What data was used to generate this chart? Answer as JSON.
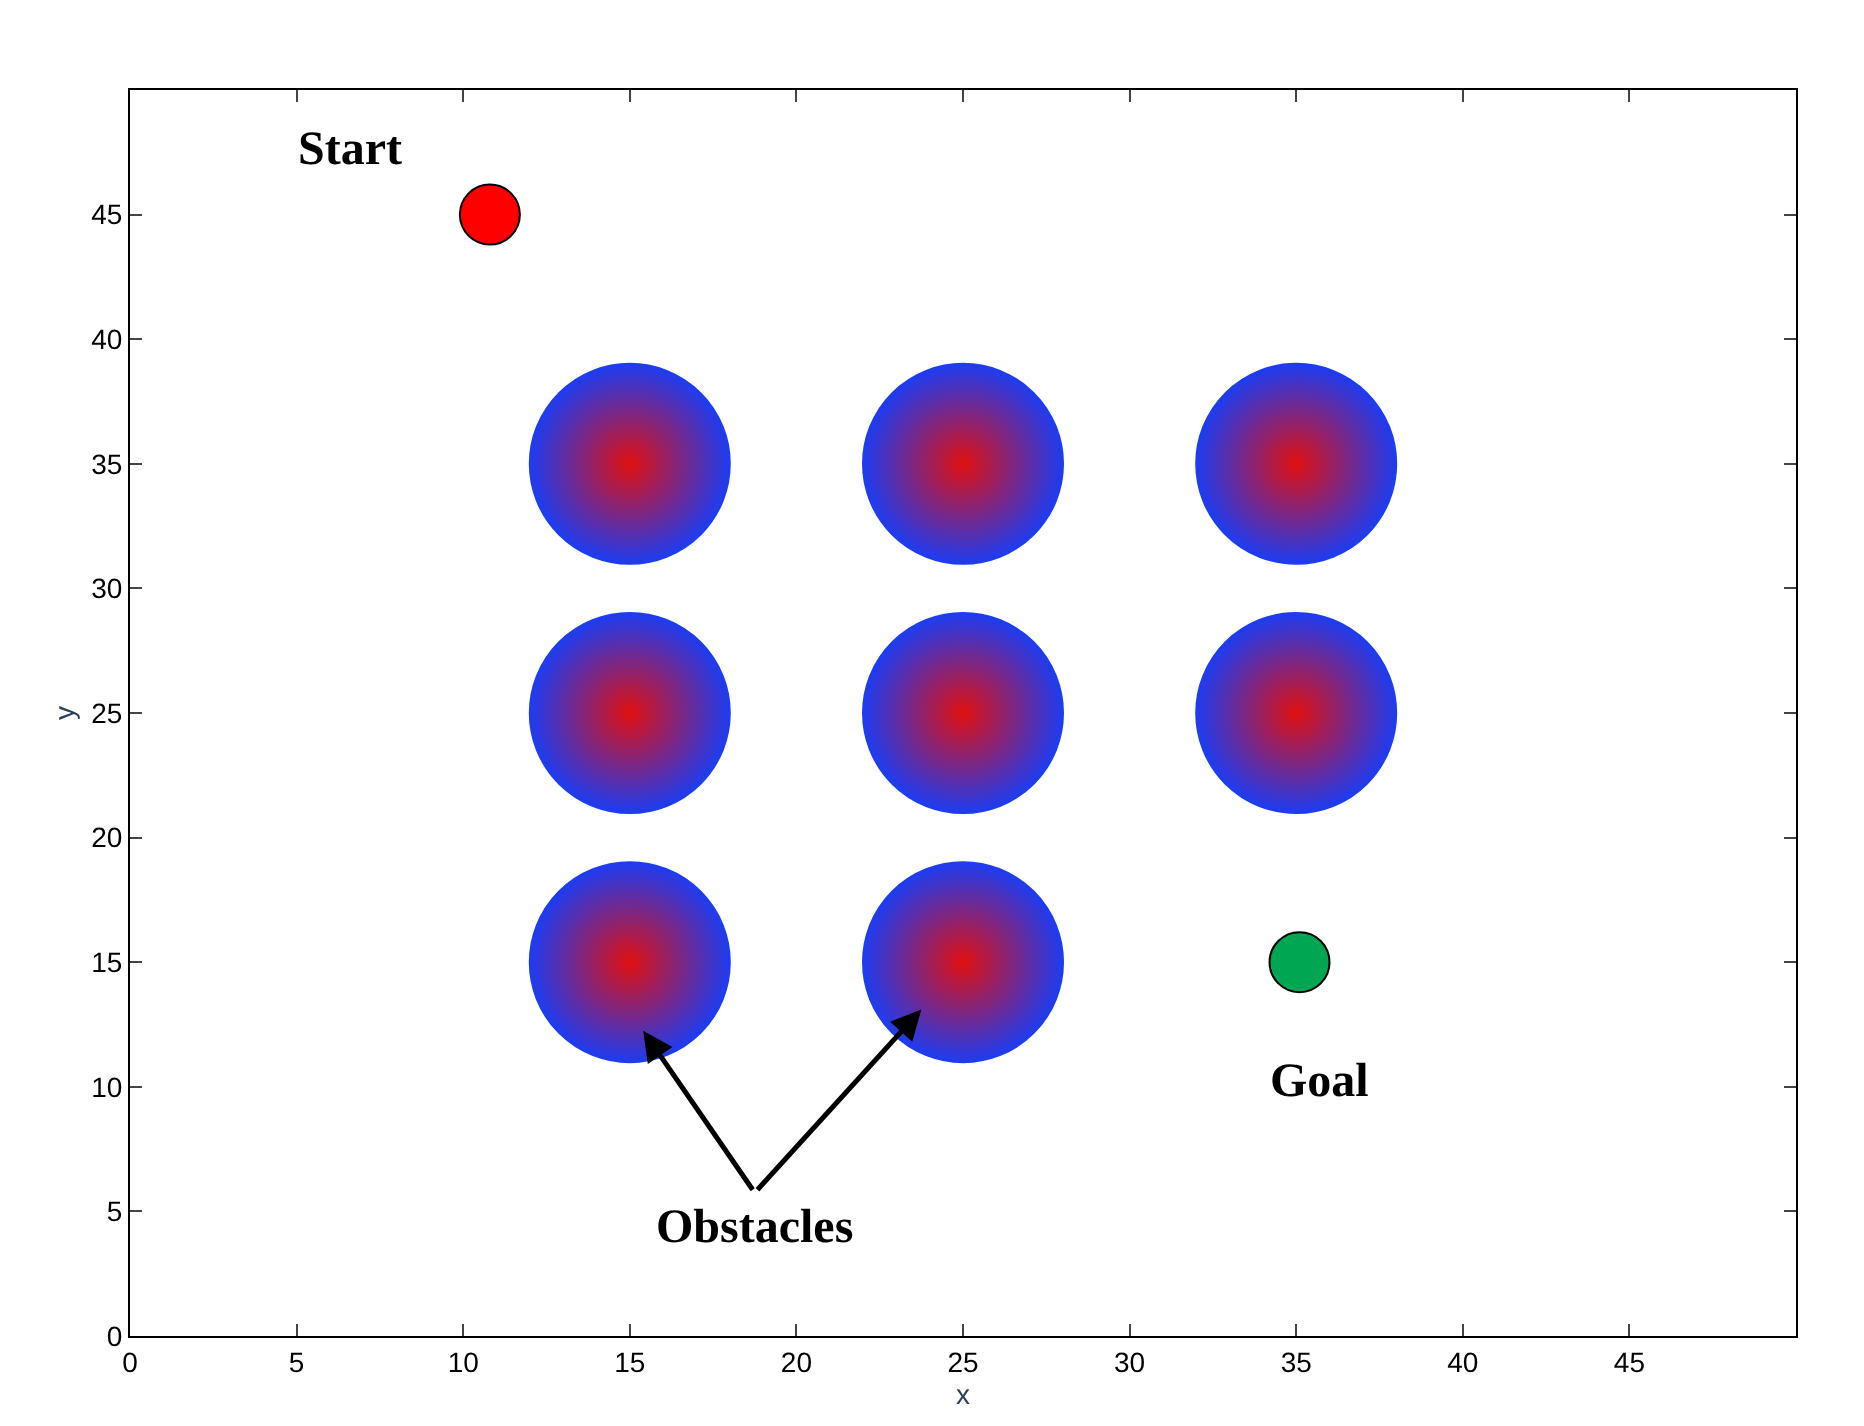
{
  "chart_data": {
    "type": "scatter",
    "xlabel": "x",
    "ylabel": "y",
    "xlim": [
      0,
      50
    ],
    "ylim": [
      0,
      50
    ],
    "xticks": [
      0,
      5,
      10,
      15,
      20,
      25,
      30,
      35,
      40,
      45
    ],
    "yticks": [
      0,
      5,
      10,
      15,
      20,
      25,
      30,
      35,
      40,
      45
    ],
    "grid": false,
    "marker": "circle",
    "series": [
      {
        "color": "#ff0000",
        "x": [
          10.8
        ],
        "values": [
          45
        ]
      },
      {
        "color": "#00a651",
        "x": [
          35.1
        ],
        "values": [
          15
        ]
      },
      {
        "color": "#1e3cf0",
        "x": [
          15,
          25,
          35,
          15,
          25,
          35,
          15,
          25
        ],
        "values": [
          35,
          35,
          35,
          25,
          25,
          25,
          15,
          15
        ]
      }
    ],
    "annotations": [
      {
        "text": "Start",
        "x": 10.8,
        "y": 45
      },
      {
        "text": "Goal",
        "x": 35.1,
        "y": 15
      },
      "Obstacles"
    ]
  }
}
